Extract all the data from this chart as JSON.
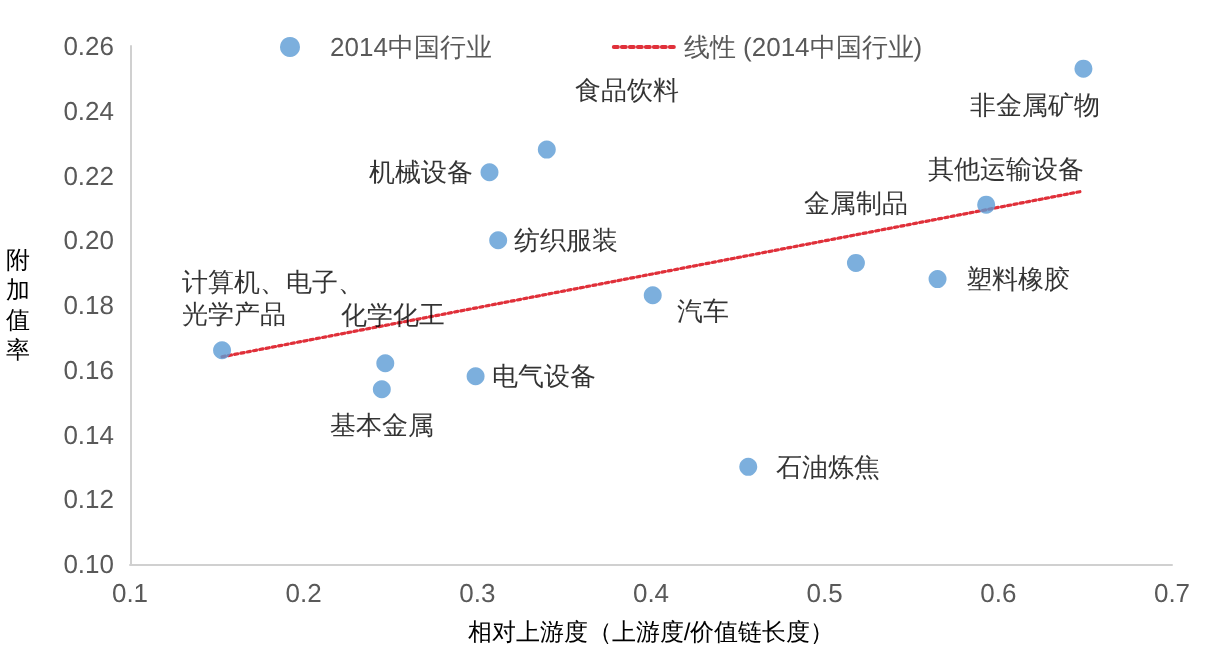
{
  "chart_data": {
    "type": "scatter",
    "xlabel": "相对上游度（上游度/价值链长度）",
    "ylabel": "附加值率",
    "series": [
      {
        "name": "2014中国行业",
        "color": "#5b9bd5",
        "marker": "circle",
        "x": [
          0.153,
          0.247,
          0.245,
          0.299,
          0.307,
          0.312,
          0.34,
          0.401,
          0.456,
          0.518,
          0.565,
          0.593,
          0.649
        ],
        "values": [
          0.166,
          0.162,
          0.154,
          0.158,
          0.221,
          0.2,
          0.228,
          0.183,
          0.13,
          0.193,
          0.188,
          0.211,
          0.253
        ]
      },
      {
        "name": "线性 (2014中国行业)",
        "type": "line",
        "color": "#e0303a",
        "line_style": "dotted",
        "marker": "none",
        "x": [
          0.153,
          0.647
        ],
        "values": [
          0.164,
          0.215
        ]
      }
    ],
    "annotations": [
      {
        "text": "计算机、电子、光学产品",
        "x": 0.153,
        "y": 0.166
      },
      {
        "text": "化学化工",
        "x": 0.247,
        "y": 0.162
      },
      {
        "text": "基本金属",
        "x": 0.245,
        "y": 0.154
      },
      {
        "text": "电气设备",
        "x": 0.299,
        "y": 0.158
      },
      {
        "text": "机械设备",
        "x": 0.307,
        "y": 0.221
      },
      {
        "text": "纺织服装",
        "x": 0.312,
        "y": 0.2
      },
      {
        "text": "食品饮料",
        "x": 0.34,
        "y": 0.228
      },
      {
        "text": "汽车",
        "x": 0.401,
        "y": 0.183
      },
      {
        "text": "石油炼焦",
        "x": 0.456,
        "y": 0.13
      },
      {
        "text": "金属制品",
        "x": 0.518,
        "y": 0.193
      },
      {
        "text": "塑料橡胶",
        "x": 0.565,
        "y": 0.188
      },
      {
        "text": "其他运输设备",
        "x": 0.593,
        "y": 0.211
      },
      {
        "text": "非金属矿物",
        "x": 0.649,
        "y": 0.253
      }
    ],
    "xlim": [
      0.1,
      0.7
    ],
    "xticks": [
      0.1,
      0.2,
      0.3,
      0.4,
      0.5,
      0.6,
      0.7
    ],
    "ylim": [
      0.1,
      0.26
    ],
    "yticks": [
      {
        "value": 0.1,
        "label": "0.10"
      },
      0.12,
      0.14,
      0.16,
      0.18,
      {
        "value": 0.2,
        "label": "0.20"
      },
      0.22,
      0.24,
      0.26
    ],
    "grid": false,
    "legend": "top"
  }
}
